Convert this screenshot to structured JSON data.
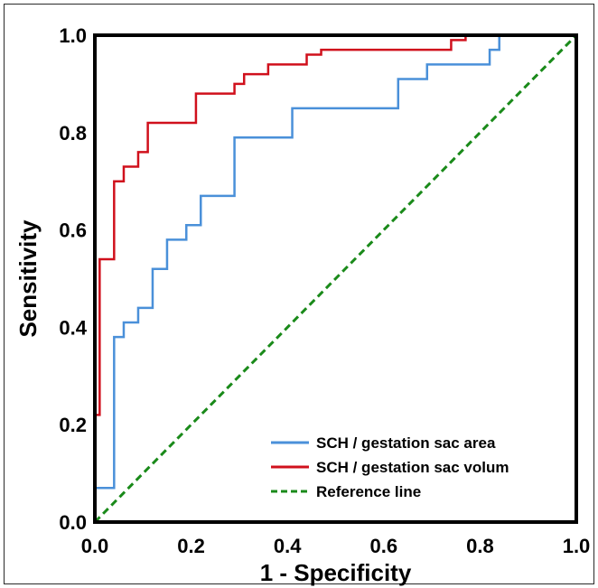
{
  "chart_data": {
    "type": "line",
    "title": "",
    "xlabel": "1 - Specificity",
    "ylabel": "Sensitivity",
    "xlim": [
      0,
      1
    ],
    "ylim": [
      0,
      1
    ],
    "xticks": [
      "0.0",
      "0.2",
      "0.4",
      "0.6",
      "0.8",
      "1.0"
    ],
    "yticks": [
      "0.0",
      "0.2",
      "0.4",
      "0.6",
      "0.8",
      "1.0"
    ],
    "legend_position": "bottom-right",
    "grid": false,
    "series": [
      {
        "name": "SCH / gestation sac area",
        "color": "#4a90d9",
        "style": "solid",
        "points": [
          [
            0,
            0
          ],
          [
            0,
            0.07
          ],
          [
            0.04,
            0.07
          ],
          [
            0.04,
            0.38
          ],
          [
            0.06,
            0.38
          ],
          [
            0.06,
            0.41
          ],
          [
            0.09,
            0.41
          ],
          [
            0.09,
            0.44
          ],
          [
            0.12,
            0.44
          ],
          [
            0.12,
            0.52
          ],
          [
            0.15,
            0.52
          ],
          [
            0.15,
            0.58
          ],
          [
            0.19,
            0.58
          ],
          [
            0.19,
            0.61
          ],
          [
            0.22,
            0.61
          ],
          [
            0.22,
            0.67
          ],
          [
            0.29,
            0.67
          ],
          [
            0.29,
            0.79
          ],
          [
            0.41,
            0.79
          ],
          [
            0.41,
            0.85
          ],
          [
            0.63,
            0.85
          ],
          [
            0.63,
            0.91
          ],
          [
            0.69,
            0.91
          ],
          [
            0.69,
            0.94
          ],
          [
            0.82,
            0.94
          ],
          [
            0.82,
            0.97
          ],
          [
            0.84,
            0.97
          ],
          [
            0.84,
            1.0
          ],
          [
            1.0,
            1.0
          ]
        ]
      },
      {
        "name": "SCH / gestation sac volum",
        "color": "#d0101c",
        "style": "solid",
        "points": [
          [
            0,
            0
          ],
          [
            0,
            0.22
          ],
          [
            0.01,
            0.22
          ],
          [
            0.01,
            0.54
          ],
          [
            0.04,
            0.54
          ],
          [
            0.04,
            0.7
          ],
          [
            0.06,
            0.7
          ],
          [
            0.06,
            0.73
          ],
          [
            0.09,
            0.73
          ],
          [
            0.09,
            0.76
          ],
          [
            0.11,
            0.76
          ],
          [
            0.11,
            0.82
          ],
          [
            0.21,
            0.82
          ],
          [
            0.21,
            0.88
          ],
          [
            0.29,
            0.88
          ],
          [
            0.29,
            0.9
          ],
          [
            0.31,
            0.9
          ],
          [
            0.31,
            0.92
          ],
          [
            0.36,
            0.92
          ],
          [
            0.36,
            0.94
          ],
          [
            0.44,
            0.94
          ],
          [
            0.44,
            0.96
          ],
          [
            0.47,
            0.96
          ],
          [
            0.47,
            0.97
          ],
          [
            0.74,
            0.97
          ],
          [
            0.74,
            0.99
          ],
          [
            0.77,
            0.99
          ],
          [
            0.77,
            1.0
          ],
          [
            1.0,
            1.0
          ]
        ]
      },
      {
        "name": "Reference line",
        "color": "#1a8a1a",
        "style": "dashed",
        "points": [
          [
            0,
            0
          ],
          [
            1,
            1
          ]
        ]
      }
    ]
  }
}
